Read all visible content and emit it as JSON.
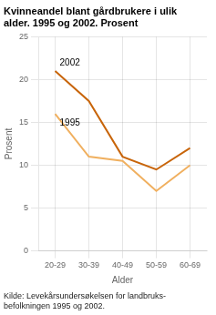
{
  "chart_data": {
    "type": "line",
    "title": [
      "Kvinneandel blant gårdbrukere i ulik",
      "alder. 1995 og 2002. Prosent"
    ],
    "x_label": "Alder",
    "y_label": "Prosent",
    "categories": [
      "20-29",
      "30-39",
      "40-49",
      "50-59",
      "60-69"
    ],
    "series": [
      {
        "name": "2002",
        "color": "#c8650a",
        "values": [
          21,
          17.5,
          11,
          9.5,
          12
        ]
      },
      {
        "name": "1995",
        "color": "#f0b060",
        "values": [
          16,
          11,
          10.5,
          7,
          10
        ]
      }
    ],
    "ylim": [
      0,
      25
    ],
    "yticks": [
      0,
      5,
      10,
      15,
      20,
      25
    ],
    "grid": true,
    "source": [
      "Kilde: Levekårsundersøkelsen for landbruks-",
      "befolkningen 1995 og 2002."
    ]
  }
}
